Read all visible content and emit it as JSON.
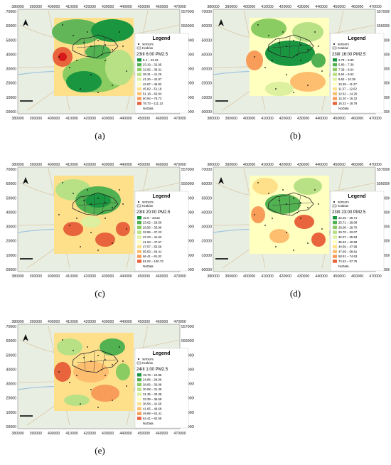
{
  "x_ticks": [
    "380000",
    "390000",
    "400000",
    "410000",
    "420000",
    "430000",
    "440000",
    "450000",
    "460000",
    "470000"
  ],
  "y_ticks": [
    "5570000",
    "5560000",
    "5550000",
    "5540000",
    "5530000",
    "5520000",
    "5510000",
    "5500000"
  ],
  "legend": {
    "title": "Legend",
    "sensors_label": "sensors",
    "boundary_label": "Kraków",
    "nodata_label": "NoData"
  },
  "colors": [
    "#1a9641",
    "#52b151",
    "#8acc62",
    "#b8e186",
    "#dcf0a0",
    "#ffffbf",
    "#fee08b",
    "#fdbf6f",
    "#f89d59",
    "#e8643c",
    "#d7191c"
  ],
  "panels": [
    {
      "id": "a",
      "caption": "(a)",
      "title": "23III 6:00 PM2.5",
      "classes": [
        "5.4 – 23.19",
        "23.19 – 32.95",
        "32.95 – 38.31",
        "38.31 – 41.26",
        "41.26 – 42.87",
        "42.87 – 45.82",
        "45.82 – 51.18",
        "51.18 – 60.94",
        "60.94 – 78.73",
        "78.73 – 111.13"
      ]
    },
    {
      "id": "b",
      "caption": "(b)",
      "title": "23III 16:00 PM2.5",
      "classes": [
        "3.79 – 5.80",
        "5.80 – 7.39",
        "7.39 – 8.64",
        "8.64 – 9.62",
        "9.62 – 10.39",
        "10.39 – 11.37",
        "11.37 – 12.62",
        "12.62 – 14.20",
        "14.20 – 16.22",
        "16.22 – 18.78"
      ]
    },
    {
      "id": "c",
      "caption": "(c)",
      "title": "23III 20:00 PM2.5",
      "classes": [
        "15.6 – 23.62",
        "23.62 – 29.56",
        "29.56 – 33.96",
        "33.96 – 37.23",
        "37.23 – 41.63",
        "41.63 – 47.57",
        "47.57 – 55.59",
        "55.59 – 66.41",
        "66.41 – 81.02",
        "81.02 – 100.73"
      ]
    },
    {
      "id": "d",
      "caption": "(d)",
      "title": "23III 23:00 PM2.5",
      "classes": [
        "22.25 – 25.71",
        "25.71 – 28.08",
        "28.08 – 29.70",
        "29.70 – 32.07",
        "32.07 – 35.53",
        "35.53 – 40.59",
        "40.59 – 47.99",
        "47.99 – 58.81",
        "58.81 – 74.63",
        "74.63 – 97.75"
      ]
    },
    {
      "id": "e",
      "caption": "(e)",
      "title": "24III 1:00 PM2.5",
      "classes": [
        "19.78 – 24.85",
        "24.85 – 28.06",
        "28.06 – 30.08",
        "30.08 – 31.35",
        "31.35 – 33.38",
        "33.38 – 36.58",
        "36.58 – 41.65",
        "41.65 – 49.68",
        "49.68 – 62.41",
        "62.41 – 82.55"
      ]
    }
  ]
}
